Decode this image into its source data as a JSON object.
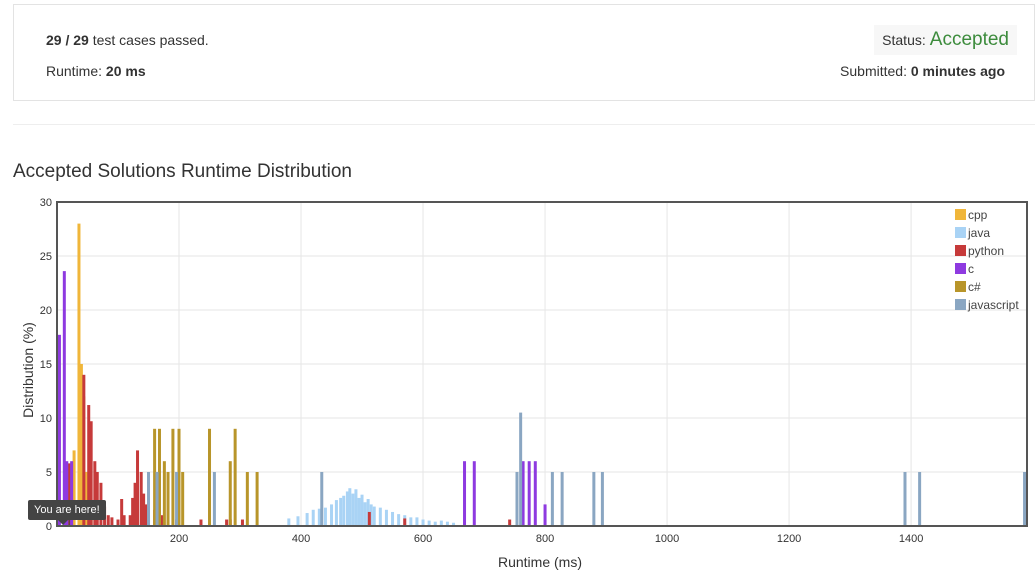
{
  "summary": {
    "cases_passed": "29 / 29",
    "cases_suffix": "test cases passed.",
    "runtime_label": "Runtime:",
    "runtime_value": "20 ms",
    "status_label": "Status:",
    "status_value": "Accepted",
    "submitted_label": "Submitted:",
    "submitted_value": "0 minutes ago"
  },
  "section_title": "Accepted Solutions Runtime Distribution",
  "tooltip": "You are here!",
  "colors": {
    "cpp": "#f0b63a",
    "java": "#a9d3f5",
    "python": "#c63a3a",
    "c": "#8e3ae0",
    "csharp": "#b8952a",
    "javascript": "#8aa6c2",
    "accepted": "#3c8b3c"
  },
  "chart_data": {
    "type": "bar",
    "xlabel": "Runtime (ms)",
    "ylabel": "Distribution (%)",
    "xlim": [
      0,
      1590
    ],
    "ylim": [
      0,
      30
    ],
    "xticks": [
      "200",
      "400",
      "600",
      "800",
      "1000",
      "1200",
      "1400"
    ],
    "xtick_values": [
      200,
      400,
      600,
      800,
      1000,
      1200,
      1400
    ],
    "yticks": [
      "0",
      "5",
      "10",
      "15",
      "20",
      "25",
      "30"
    ],
    "ytick_values": [
      0,
      5,
      10,
      15,
      20,
      25,
      30
    ],
    "grid": true,
    "legend_position": "top-right",
    "marker_x": 20,
    "series": [
      {
        "name": "cpp",
        "color": "#f0b63a",
        "points": [
          [
            28,
            7
          ],
          [
            36,
            28
          ],
          [
            40,
            15
          ],
          [
            44,
            12
          ],
          [
            48,
            5
          ],
          [
            52,
            3
          ],
          [
            56,
            1
          ]
        ]
      },
      {
        "name": "java",
        "color": "#a9d3f5",
        "points": [
          [
            380,
            0.7
          ],
          [
            395,
            0.9
          ],
          [
            410,
            1.2
          ],
          [
            420,
            1.5
          ],
          [
            430,
            1.6
          ],
          [
            440,
            1.7
          ],
          [
            450,
            2
          ],
          [
            458,
            2.4
          ],
          [
            465,
            2.6
          ],
          [
            470,
            2.8
          ],
          [
            476,
            3.2
          ],
          [
            480,
            3.5
          ],
          [
            485,
            3
          ],
          [
            490,
            3.4
          ],
          [
            495,
            2.6
          ],
          [
            500,
            2.9
          ],
          [
            505,
            2.2
          ],
          [
            510,
            2.5
          ],
          [
            515,
            2
          ],
          [
            520,
            1.8
          ],
          [
            530,
            1.7
          ],
          [
            540,
            1.5
          ],
          [
            550,
            1.3
          ],
          [
            560,
            1.1
          ],
          [
            570,
            1
          ],
          [
            580,
            0.8
          ],
          [
            590,
            0.8
          ],
          [
            600,
            0.6
          ],
          [
            610,
            0.5
          ],
          [
            620,
            0.4
          ],
          [
            630,
            0.5
          ],
          [
            640,
            0.4
          ],
          [
            650,
            0.3
          ]
        ]
      },
      {
        "name": "python",
        "color": "#c63a3a",
        "points": [
          [
            20,
            5.8
          ],
          [
            44,
            14
          ],
          [
            52,
            11.2
          ],
          [
            56,
            9.7
          ],
          [
            62,
            6
          ],
          [
            66,
            5
          ],
          [
            72,
            4
          ],
          [
            78,
            1.8
          ],
          [
            84,
            1
          ],
          [
            90,
            0.8
          ],
          [
            100,
            0.6
          ],
          [
            106,
            2.5
          ],
          [
            110,
            1
          ],
          [
            120,
            1
          ],
          [
            124,
            2.6
          ],
          [
            128,
            4
          ],
          [
            132,
            7
          ],
          [
            138,
            5
          ],
          [
            142,
            3
          ],
          [
            146,
            2
          ],
          [
            150,
            1
          ],
          [
            160,
            1.5
          ],
          [
            172,
            1
          ],
          [
            196,
            0.6
          ],
          [
            236,
            0.6
          ],
          [
            278,
            0.6
          ],
          [
            284,
            0.6
          ],
          [
            304,
            0.6
          ],
          [
            512,
            1.3
          ],
          [
            570,
            0.7
          ],
          [
            742,
            0.6
          ]
        ]
      },
      {
        "name": "c",
        "color": "#8e3ae0",
        "points": [
          [
            4,
            17.7
          ],
          [
            12,
            23.6
          ],
          [
            16,
            6
          ],
          [
            24,
            6
          ],
          [
            668,
            6
          ],
          [
            684,
            6
          ],
          [
            764,
            6
          ],
          [
            774,
            6
          ],
          [
            784,
            6
          ],
          [
            800,
            2
          ]
        ]
      },
      {
        "name": "c#",
        "color": "#b8952a",
        "points": [
          [
            160,
            9
          ],
          [
            168,
            9
          ],
          [
            176,
            6
          ],
          [
            182,
            5
          ],
          [
            190,
            9
          ],
          [
            200,
            9
          ],
          [
            206,
            5
          ],
          [
            250,
            9
          ],
          [
            284,
            6
          ],
          [
            292,
            9
          ],
          [
            312,
            5
          ],
          [
            328,
            5
          ]
        ]
      },
      {
        "name": "javascript",
        "color": "#8aa6c2",
        "points": [
          [
            150,
            5
          ],
          [
            164,
            5
          ],
          [
            196,
            5
          ],
          [
            258,
            5
          ],
          [
            434,
            5
          ],
          [
            754,
            5
          ],
          [
            760,
            10.5
          ],
          [
            812,
            5
          ],
          [
            828,
            5
          ],
          [
            880,
            5
          ],
          [
            894,
            5
          ],
          [
            1390,
            5
          ],
          [
            1414,
            5
          ],
          [
            1586,
            5
          ]
        ]
      }
    ]
  }
}
